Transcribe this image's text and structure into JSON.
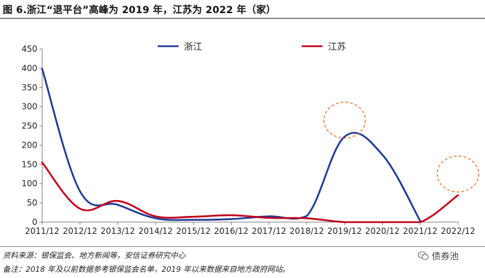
{
  "figure": {
    "title": "图 6.浙江“退平台”高峰为 2019 年，江苏为 2022 年（家）",
    "source_note": "资料来源：银保监会、地方新闻等，安信证券研究中心",
    "remark_note": "备注：2018 年及以前数据参考银保监会名单，2019 年以来数据来自地方政府网站。",
    "watermark": "债券池",
    "watermark_icon": "wechat-icon"
  },
  "chart_data": {
    "type": "line",
    "title": "",
    "xlabel": "",
    "ylabel": "",
    "categories": [
      "2011/12",
      "2012/12",
      "2013/12",
      "2014/12",
      "2015/12",
      "2016/12",
      "2017/12",
      "2018/12",
      "2019/12",
      "2020/12",
      "2021/12",
      "2022/12"
    ],
    "y_ticks": [
      "0",
      "50",
      "100",
      "150",
      "200",
      "250",
      "300",
      "350",
      "400",
      "450"
    ],
    "ylim": [
      0,
      450
    ],
    "grid": false,
    "legend_position": "top-center",
    "series": [
      {
        "name": "浙江",
        "color": "#1f3a93",
        "values": [
          398,
          80,
          45,
          10,
          6,
          8,
          15,
          16,
          222,
          175,
          3,
          null
        ]
      },
      {
        "name": "江苏",
        "color": "#c0001a",
        "values": [
          155,
          35,
          55,
          15,
          14,
          18,
          11,
          10,
          0,
          0,
          0,
          70
        ]
      }
    ],
    "annotations": [
      {
        "type": "dashed-circle",
        "color": "#e8702a",
        "x": "2019/12",
        "y": 265
      },
      {
        "type": "dashed-circle",
        "color": "#e8702a",
        "x": "2022/12",
        "y": 125
      }
    ]
  }
}
